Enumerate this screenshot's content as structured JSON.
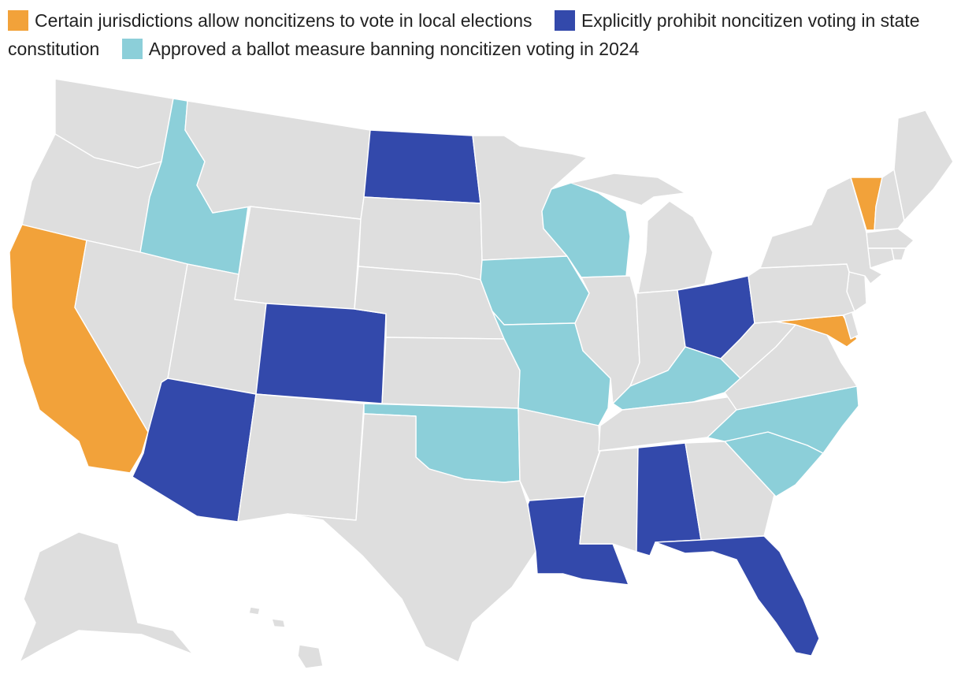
{
  "legend": [
    {
      "key": "allow_local",
      "label": "Certain jurisdictions allow noncitizens to vote in local elections",
      "color": "#f2a23a"
    },
    {
      "key": "prohibit_constitution",
      "label": "Explicitly prohibit noncitizen voting in state constitution",
      "color": "#3349ab"
    },
    {
      "key": "ballot_2024",
      "label": "Approved a ballot measure banning noncitizen voting in 2024",
      "color": "#8ccfd9"
    }
  ],
  "default_color": "#dedede",
  "states": {
    "California": "allow_local",
    "Vermont": "allow_local",
    "Maryland": "allow_local",
    "North Dakota": "prohibit_constitution",
    "Colorado": "prohibit_constitution",
    "Arizona": "prohibit_constitution",
    "Ohio": "prohibit_constitution",
    "Louisiana": "prohibit_constitution",
    "Alabama": "prohibit_constitution",
    "Florida": "prohibit_constitution",
    "Idaho": "ballot_2024",
    "Wisconsin": "ballot_2024",
    "Iowa": "ballot_2024",
    "Missouri": "ballot_2024",
    "Kentucky": "ballot_2024",
    "Oklahoma": "ballot_2024",
    "North Carolina": "ballot_2024",
    "South Carolina": "ballot_2024"
  }
}
